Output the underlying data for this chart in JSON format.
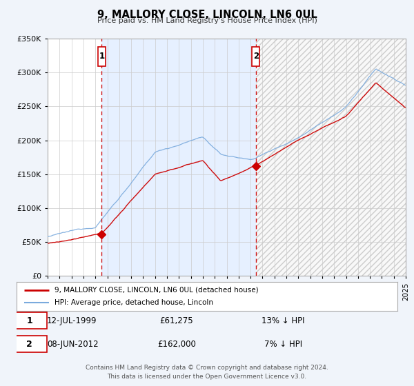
{
  "title": "9, MALLORY CLOSE, LINCOLN, LN6 0UL",
  "subtitle": "Price paid vs. HM Land Registry's House Price Index (HPI)",
  "legend_entry1": "9, MALLORY CLOSE, LINCOLN, LN6 0UL (detached house)",
  "legend_entry2": "HPI: Average price, detached house, Lincoln",
  "marker1_date": 1999.53,
  "marker1_value": 61275,
  "marker2_date": 2012.44,
  "marker2_value": 162000,
  "marker1_date_str": "12-JUL-1999",
  "marker1_price_str": "£61,275",
  "marker1_hpi_str": "13% ↓ HPI",
  "marker2_date_str": "08-JUN-2012",
  "marker2_price_str": "£162,000",
  "marker2_hpi_str": "7% ↓ HPI",
  "xmin": 1995.0,
  "xmax": 2025.0,
  "ymin": 0,
  "ymax": 350000,
  "yticks": [
    0,
    50000,
    100000,
    150000,
    200000,
    250000,
    300000,
    350000
  ],
  "ytick_labels": [
    "£0",
    "£50K",
    "£100K",
    "£150K",
    "£200K",
    "£250K",
    "£300K",
    "£350K"
  ],
  "footer_line1": "Contains HM Land Registry data © Crown copyright and database right 2024.",
  "footer_line2": "This data is licensed under the Open Government Licence v3.0.",
  "bg_color": "#f0f4fa",
  "plot_bg_color": "#ffffff",
  "red_color": "#cc0000",
  "blue_color": "#7aaadd",
  "shade_color": "#ddeeff"
}
